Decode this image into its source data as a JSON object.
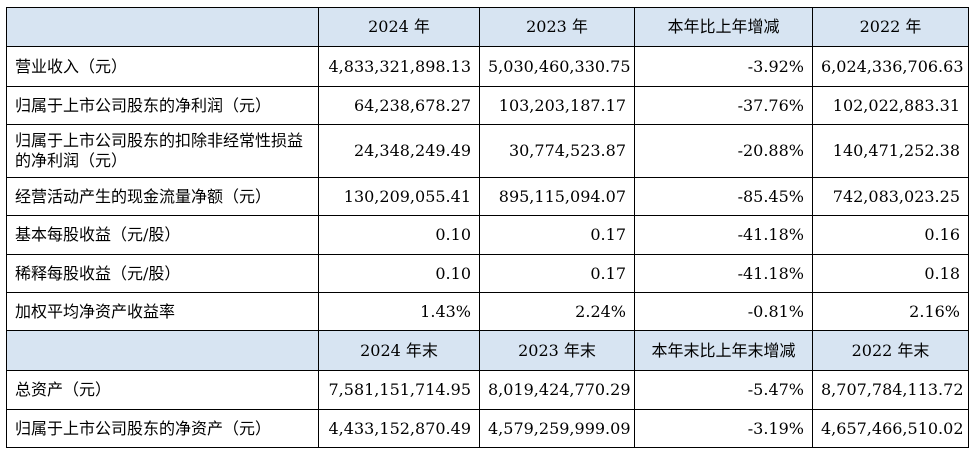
{
  "header_1": [
    "",
    "2024 年",
    "2023 年",
    "本年比上年增减",
    "2022 年"
  ],
  "header_2": [
    "",
    "2024 年末",
    "2023 年末",
    "本年末比上年末增减",
    "2022 年末"
  ],
  "rows_1": [
    {
      "label": "营业收入（元）",
      "y2024": "4,833,321,898.13",
      "y2023": "5,030,460,330.75",
      "change": "-3.92%",
      "y2022": "6,024,336,706.63"
    },
    {
      "label": "归属于上市公司股东的净利润（元）",
      "y2024": "64,238,678.27",
      "y2023": "103,203,187.17",
      "change": "-37.76%",
      "y2022": "102,022,883.31"
    },
    {
      "label": "归属于上市公司股东的扣除非经常性损益的净利润（元）",
      "y2024": "24,348,249.49",
      "y2023": "30,774,523.87",
      "change": "-20.88%",
      "y2022": "140,471,252.38"
    },
    {
      "label": "经营活动产生的现金流量净额（元）",
      "y2024": "130,209,055.41",
      "y2023": "895,115,094.07",
      "change": "-85.45%",
      "y2022": "742,083,023.25"
    },
    {
      "label": "基本每股收益（元/股）",
      "y2024": "0.10",
      "y2023": "0.17",
      "change": "-41.18%",
      "y2022": "0.16"
    },
    {
      "label": "稀释每股收益（元/股）",
      "y2024": "0.10",
      "y2023": "0.17",
      "change": "-41.18%",
      "y2022": "0.18"
    },
    {
      "label": "加权平均净资产收益率",
      "y2024": "1.43%",
      "y2023": "2.24%",
      "change": "-0.81%",
      "y2022": "2.16%"
    }
  ],
  "rows_2": [
    {
      "label": "总资产（元）",
      "y2024": "7,581,151,714.95",
      "y2023": "8,019,424,770.29",
      "change": "-5.47%",
      "y2022": "8,707,784,113.72"
    },
    {
      "label": "归属于上市公司股东的净资产（元）",
      "y2024": "4,433,152,870.49",
      "y2023": "4,579,259,999.09",
      "change": "-3.19%",
      "y2022": "4,657,466,510.02"
    }
  ],
  "colors": {
    "header_bg": "#d7e4f2",
    "border": "#000000",
    "text": "#000000"
  }
}
